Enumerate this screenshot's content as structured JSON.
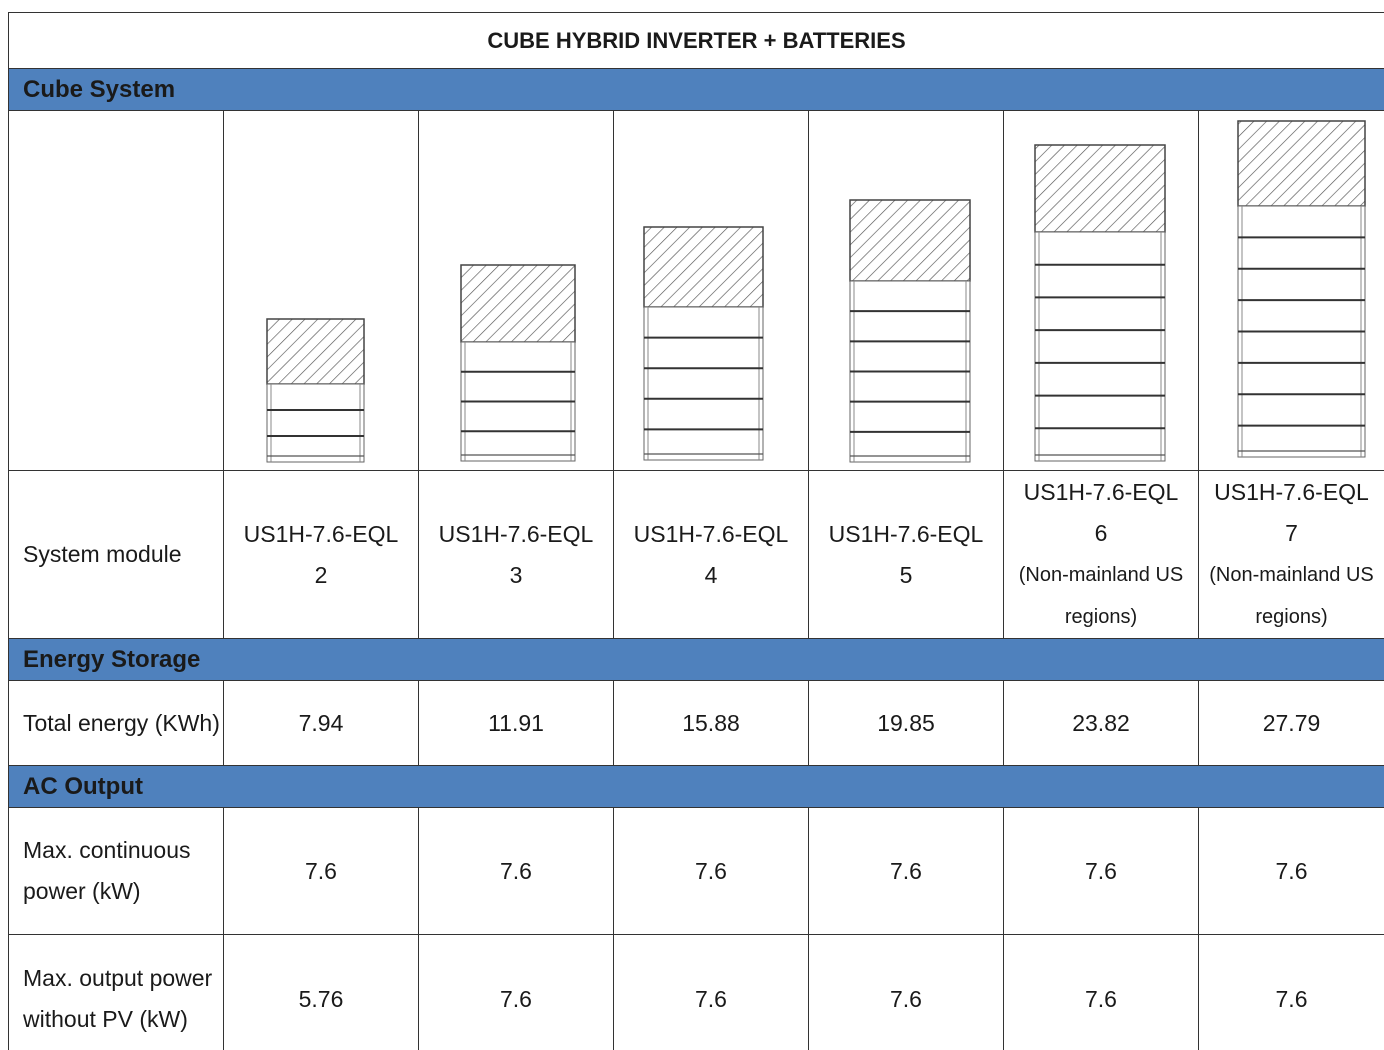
{
  "header": {
    "title": "CUBE HYBRID INVERTER + BATTERIES"
  },
  "sections": [
    {
      "title": "Cube System",
      "rows": [
        {
          "label": "System module",
          "cells": [
            {
              "model": "US1H-7.6-EQL",
              "size": "2"
            },
            {
              "model": "US1H-7.6-EQL",
              "size": "3"
            },
            {
              "model": "US1H-7.6-EQL",
              "size": "4"
            },
            {
              "model": "US1H-7.6-EQL",
              "size": "5"
            },
            {
              "model": "US1H-7.6-EQL",
              "size": "6",
              "note": "(Non-mainland US regions)"
            },
            {
              "model": "US1H-7.6-EQL",
              "size": "7",
              "note": "(Non-mainland US regions)"
            }
          ]
        }
      ]
    },
    {
      "title": "Energy Storage",
      "rows": [
        {
          "label": "Total energy (KWh)",
          "cells": [
            7.94,
            11.91,
            15.88,
            19.85,
            23.82,
            27.79
          ]
        }
      ]
    },
    {
      "title": "AC Output",
      "rows": [
        {
          "label": "Max. continuous power (kW)",
          "cells": [
            7.6,
            7.6,
            7.6,
            7.6,
            7.6,
            7.6
          ]
        },
        {
          "label": "Max. output power without PV (kW)",
          "cells": [
            5.76,
            7.6,
            7.6,
            7.6,
            7.6,
            7.6
          ]
        }
      ]
    }
  ]
}
